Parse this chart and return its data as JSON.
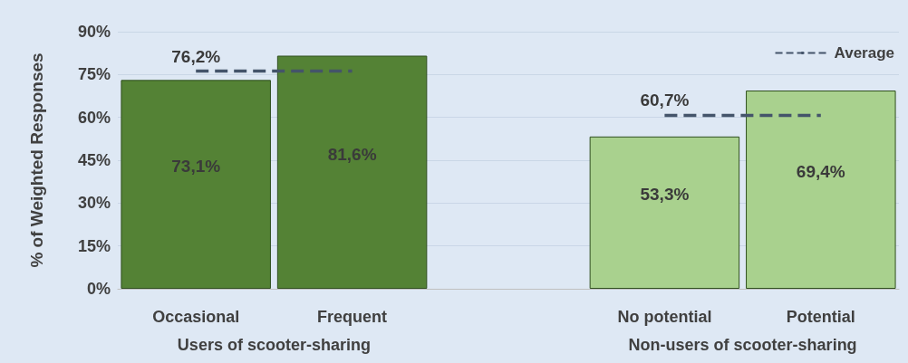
{
  "chart_data": {
    "type": "bar",
    "ylabel": "% of Weighted Responses",
    "categories": [
      "Occasional",
      "Frequent",
      null,
      "No potential",
      "Potential"
    ],
    "series": [
      {
        "type": "bar",
        "colors": [
          "#548235",
          "#548235",
          null,
          "#a9d18e",
          "#a9d18e"
        ],
        "values": [
          73.1,
          81.6,
          null,
          53.3,
          69.4
        ],
        "value_labels": [
          "73,1%",
          "81,6%",
          null,
          "53,3%",
          "69,4%"
        ]
      },
      {
        "type": "line",
        "name": "Average",
        "color": "#44546a",
        "line_style": "dashed",
        "marker": "none",
        "values": [
          76.2,
          76.2,
          null,
          60.7,
          60.7
        ],
        "value_labels": [
          "76,2%",
          null,
          null,
          "60,7%",
          null
        ]
      }
    ],
    "ylim": [
      0,
      90
    ],
    "yticks": [
      {
        "value": 0,
        "label": "0%"
      },
      {
        "value": 15,
        "label": "15%"
      },
      {
        "value": 30,
        "label": "30%"
      },
      {
        "value": 45,
        "label": "45%"
      },
      {
        "value": 60,
        "label": "60%"
      },
      {
        "value": 75,
        "label": "75%"
      },
      {
        "value": 90,
        "label": "90%"
      }
    ],
    "grid": "y",
    "legend": "top right",
    "annotations": [
      "Users of scooter-sharing",
      "Non-users of scooter-sharing"
    ]
  }
}
